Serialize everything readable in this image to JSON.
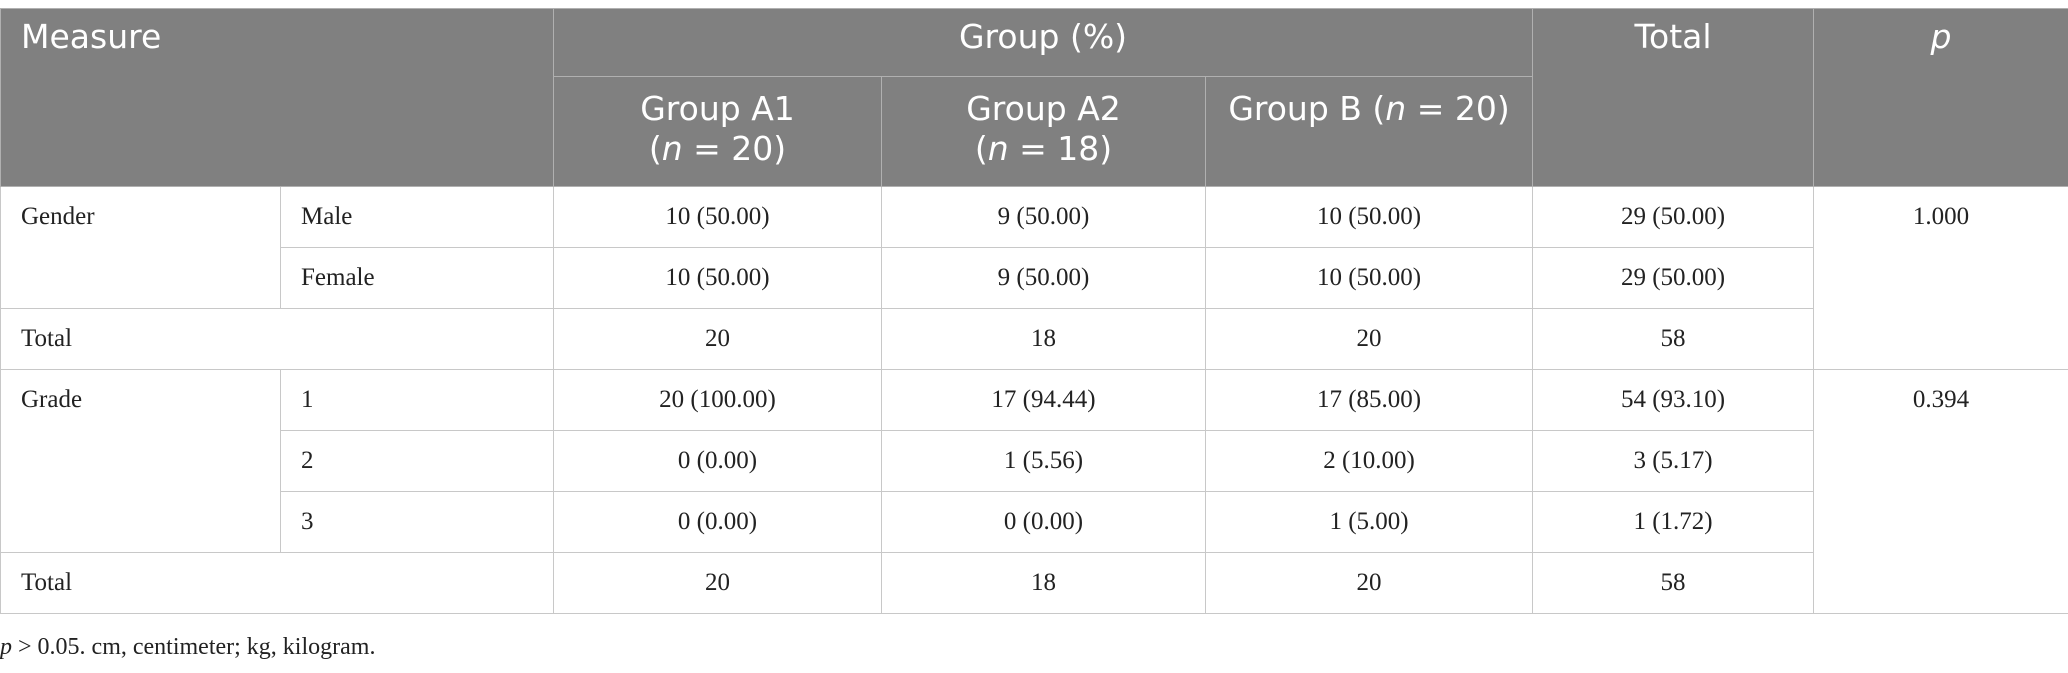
{
  "header": {
    "measure": "Measure",
    "group_pct": "Group (%)",
    "total": "Total",
    "p": "p",
    "groups": [
      {
        "name": "Group A1",
        "n_prefix": "(",
        "n_var": "n",
        "n_rest": " = 20)"
      },
      {
        "name": "Group A2",
        "n_prefix": "(",
        "n_var": "n",
        "n_rest": " = 18)"
      },
      {
        "name": "Group B ",
        "n_prefix": "(",
        "n_var": "n",
        "n_rest": " = 20)"
      }
    ]
  },
  "sections": [
    {
      "label": "Gender",
      "p_value": "1.000",
      "rows": [
        {
          "sub": "Male",
          "a1": "10 (50.00)",
          "a2": "9 (50.00)",
          "b": "10 (50.00)",
          "total": "29 (50.00)"
        },
        {
          "sub": "Female",
          "a1": "10 (50.00)",
          "a2": "9 (50.00)",
          "b": "10 (50.00)",
          "total": "29 (50.00)"
        }
      ],
      "total_row": {
        "label": "Total",
        "a1": "20",
        "a2": "18",
        "b": "20",
        "total": "58"
      }
    },
    {
      "label": "Grade",
      "p_value": "0.394",
      "rows": [
        {
          "sub": "1",
          "a1": "20 (100.00)",
          "a2": "17 (94.44)",
          "b": "17 (85.00)",
          "total": "54 (93.10)"
        },
        {
          "sub": "2",
          "a1": "0 (0.00)",
          "a2": "1 (5.56)",
          "b": "2 (10.00)",
          "total": "3 (5.17)"
        },
        {
          "sub": "3",
          "a1": "0 (0.00)",
          "a2": "0 (0.00)",
          "b": "1 (5.00)",
          "total": "1 (1.72)"
        }
      ],
      "total_row": {
        "label": "Total",
        "a1": "20",
        "a2": "18",
        "b": "20",
        "total": "58"
      }
    }
  ],
  "footnote": {
    "p_var": "p",
    "text": " > 0.05. cm, centimeter; kg, kilogram."
  }
}
